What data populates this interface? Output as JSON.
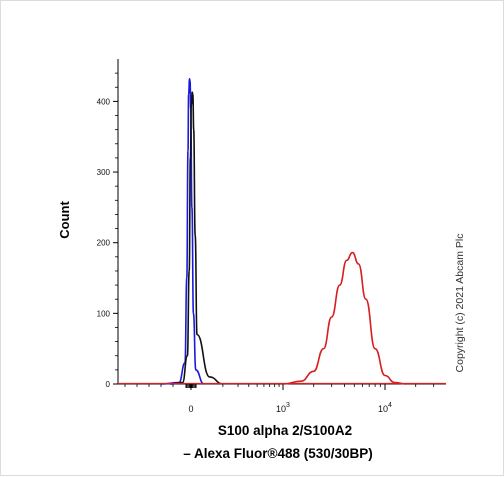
{
  "chart_data": {
    "type": "line",
    "title": "",
    "ylabel": "Count",
    "xlabel_line1": "S100 alpha 2/S100A2",
    "xlabel_line2": "– Alexa Fluor®488 (530/30BP)",
    "x_scale": "biexponential",
    "ylim": [
      0,
      460
    ],
    "y_ticks": [
      0,
      100,
      200,
      300,
      400
    ],
    "x_ticks": [
      {
        "base": "0",
        "exp": ""
      },
      {
        "base": "10",
        "exp": "3"
      },
      {
        "base": "10",
        "exp": "4"
      }
    ],
    "grid": false,
    "legend": "none",
    "copyright": "Copyright (c) 2021 Abcam Plc",
    "series": [
      {
        "color": "#1a1adb",
        "points": [
          [
            -300,
            0
          ],
          [
            -150,
            2
          ],
          [
            -100,
            30
          ],
          [
            -70,
            150
          ],
          [
            -50,
            330
          ],
          [
            -40,
            410
          ],
          [
            -25,
            432
          ],
          [
            -15,
            428
          ],
          [
            -5,
            390
          ],
          [
            15,
            250
          ],
          [
            40,
            100
          ],
          [
            80,
            20
          ],
          [
            120,
            0
          ]
        ]
      },
      {
        "color": "#111111",
        "points": [
          [
            -220,
            0
          ],
          [
            -120,
            2
          ],
          [
            -60,
            40
          ],
          [
            -30,
            160
          ],
          [
            -10,
            320
          ],
          [
            5,
            395
          ],
          [
            20,
            413
          ],
          [
            30,
            410
          ],
          [
            45,
            360
          ],
          [
            70,
            210
          ],
          [
            100,
            70
          ],
          [
            140,
            10
          ],
          [
            200,
            0
          ]
        ]
      },
      {
        "color": "#d81e1e",
        "points": [
          [
            1000,
            0
          ],
          [
            1500,
            4
          ],
          [
            2000,
            18
          ],
          [
            2500,
            50
          ],
          [
            3000,
            95
          ],
          [
            3600,
            140
          ],
          [
            4200,
            175
          ],
          [
            4800,
            186
          ],
          [
            5500,
            170
          ],
          [
            6500,
            120
          ],
          [
            8000,
            50
          ],
          [
            10000,
            12
          ],
          [
            12500,
            2
          ],
          [
            16000,
            0
          ]
        ]
      }
    ]
  }
}
